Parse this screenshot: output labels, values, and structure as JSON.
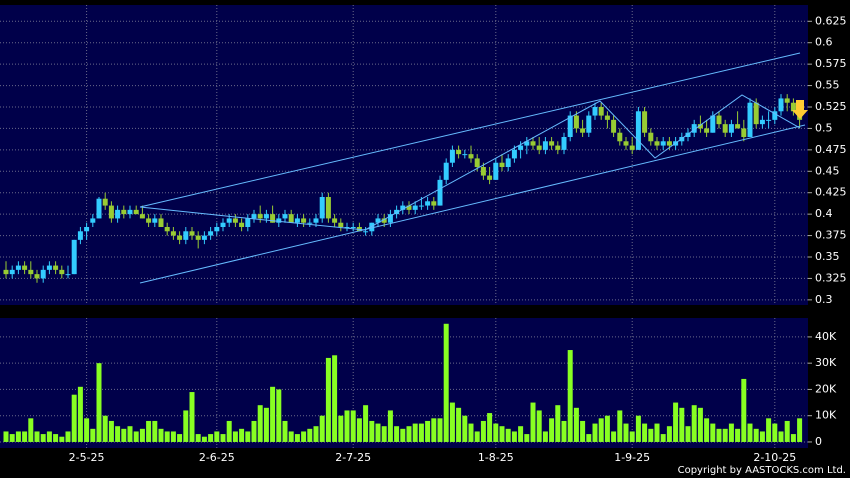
{
  "chart_data": [
    {
      "type": "candlestick",
      "open": [
        0.335,
        0.33,
        0.335,
        0.34,
        0.335,
        0.33,
        0.325,
        0.335,
        0.34,
        0.335,
        0.33,
        0.33,
        0.37,
        0.38,
        0.39,
        0.395,
        0.418,
        0.41,
        0.395,
        0.405,
        0.4,
        0.405,
        0.4,
        0.395,
        0.39,
        0.395,
        0.385,
        0.38,
        0.375,
        0.37,
        0.38,
        0.375,
        0.37,
        0.375,
        0.38,
        0.385,
        0.39,
        0.395,
        0.39,
        0.385,
        0.395,
        0.4,
        0.395,
        0.4,
        0.39,
        0.395,
        0.4,
        0.39,
        0.395,
        0.39,
        0.39,
        0.395,
        0.42,
        0.395,
        0.39,
        0.385,
        0.385,
        0.385,
        0.38,
        0.38,
        0.39,
        0.395,
        0.39,
        0.4,
        0.405,
        0.41,
        0.405,
        0.41,
        0.41,
        0.415,
        0.41,
        0.44,
        0.46,
        0.475,
        0.47,
        0.47,
        0.465,
        0.455,
        0.445,
        0.44,
        0.46,
        0.455,
        0.465,
        0.475,
        0.48,
        0.485,
        0.48,
        0.475,
        0.485,
        0.48,
        0.475,
        0.49,
        0.515,
        0.5,
        0.495,
        0.515,
        0.525,
        0.515,
        0.51,
        0.495,
        0.485,
        0.48,
        0.475,
        0.52,
        0.495,
        0.485,
        0.48,
        0.485,
        0.48,
        0.485,
        0.49,
        0.495,
        0.505,
        0.5,
        0.495,
        0.515,
        0.505,
        0.495,
        0.505,
        0.5,
        0.49,
        0.53,
        0.505,
        0.51,
        0.51,
        0.52,
        0.535,
        0.53,
        0.52
      ],
      "high": [
        0.345,
        0.34,
        0.345,
        0.345,
        0.345,
        0.335,
        0.34,
        0.345,
        0.345,
        0.34,
        0.34,
        0.37,
        0.385,
        0.39,
        0.4,
        0.42,
        0.425,
        0.415,
        0.41,
        0.41,
        0.41,
        0.41,
        0.41,
        0.4,
        0.4,
        0.4,
        0.39,
        0.385,
        0.38,
        0.385,
        0.385,
        0.38,
        0.38,
        0.385,
        0.39,
        0.395,
        0.4,
        0.4,
        0.395,
        0.4,
        0.405,
        0.41,
        0.405,
        0.41,
        0.4,
        0.405,
        0.405,
        0.4,
        0.4,
        0.395,
        0.4,
        0.425,
        0.425,
        0.4,
        0.395,
        0.39,
        0.39,
        0.39,
        0.385,
        0.39,
        0.4,
        0.4,
        0.405,
        0.41,
        0.415,
        0.415,
        0.415,
        0.42,
        0.42,
        0.42,
        0.445,
        0.465,
        0.48,
        0.48,
        0.475,
        0.48,
        0.47,
        0.46,
        0.455,
        0.465,
        0.47,
        0.47,
        0.48,
        0.485,
        0.49,
        0.49,
        0.49,
        0.49,
        0.49,
        0.485,
        0.495,
        0.52,
        0.52,
        0.51,
        0.52,
        0.53,
        0.53,
        0.52,
        0.515,
        0.5,
        0.49,
        0.49,
        0.525,
        0.525,
        0.5,
        0.49,
        0.49,
        0.49,
        0.49,
        0.495,
        0.5,
        0.51,
        0.515,
        0.51,
        0.52,
        0.52,
        0.51,
        0.51,
        0.52,
        0.51,
        0.535,
        0.535,
        0.515,
        0.52,
        0.525,
        0.54,
        0.54,
        0.535,
        0.525
      ],
      "low": [
        0.325,
        0.325,
        0.33,
        0.33,
        0.325,
        0.32,
        0.32,
        0.33,
        0.33,
        0.325,
        0.325,
        0.33,
        0.365,
        0.37,
        0.385,
        0.395,
        0.405,
        0.39,
        0.39,
        0.395,
        0.395,
        0.4,
        0.395,
        0.385,
        0.385,
        0.385,
        0.375,
        0.37,
        0.365,
        0.365,
        0.37,
        0.36,
        0.365,
        0.37,
        0.375,
        0.38,
        0.385,
        0.385,
        0.38,
        0.38,
        0.39,
        0.39,
        0.39,
        0.39,
        0.385,
        0.39,
        0.39,
        0.385,
        0.385,
        0.385,
        0.385,
        0.39,
        0.39,
        0.385,
        0.38,
        0.38,
        0.38,
        0.38,
        0.375,
        0.375,
        0.385,
        0.385,
        0.385,
        0.395,
        0.4,
        0.4,
        0.4,
        0.405,
        0.405,
        0.405,
        0.41,
        0.435,
        0.455,
        0.465,
        0.465,
        0.46,
        0.45,
        0.44,
        0.435,
        0.44,
        0.45,
        0.45,
        0.46,
        0.465,
        0.47,
        0.475,
        0.47,
        0.47,
        0.475,
        0.47,
        0.47,
        0.485,
        0.495,
        0.49,
        0.49,
        0.51,
        0.51,
        0.5,
        0.49,
        0.48,
        0.475,
        0.47,
        0.475,
        0.49,
        0.48,
        0.475,
        0.475,
        0.475,
        0.475,
        0.48,
        0.485,
        0.49,
        0.495,
        0.49,
        0.495,
        0.5,
        0.49,
        0.49,
        0.5,
        0.485,
        0.49,
        0.5,
        0.5,
        0.5,
        0.505,
        0.515,
        0.52,
        0.515,
        0.5
      ],
      "close": [
        0.33,
        0.335,
        0.34,
        0.335,
        0.33,
        0.325,
        0.335,
        0.34,
        0.335,
        0.33,
        0.33,
        0.37,
        0.38,
        0.385,
        0.395,
        0.418,
        0.41,
        0.395,
        0.405,
        0.4,
        0.405,
        0.4,
        0.395,
        0.39,
        0.395,
        0.385,
        0.38,
        0.375,
        0.37,
        0.38,
        0.375,
        0.37,
        0.375,
        0.38,
        0.385,
        0.39,
        0.395,
        0.39,
        0.385,
        0.395,
        0.4,
        0.395,
        0.4,
        0.39,
        0.395,
        0.4,
        0.39,
        0.395,
        0.39,
        0.39,
        0.395,
        0.42,
        0.395,
        0.39,
        0.385,
        0.385,
        0.385,
        0.38,
        0.38,
        0.39,
        0.395,
        0.39,
        0.4,
        0.405,
        0.41,
        0.405,
        0.41,
        0.41,
        0.415,
        0.41,
        0.44,
        0.46,
        0.475,
        0.47,
        0.47,
        0.465,
        0.455,
        0.445,
        0.44,
        0.46,
        0.455,
        0.465,
        0.475,
        0.48,
        0.485,
        0.48,
        0.475,
        0.485,
        0.48,
        0.475,
        0.49,
        0.515,
        0.5,
        0.495,
        0.515,
        0.525,
        0.515,
        0.51,
        0.495,
        0.485,
        0.48,
        0.475,
        0.52,
        0.495,
        0.485,
        0.48,
        0.485,
        0.48,
        0.485,
        0.49,
        0.495,
        0.505,
        0.5,
        0.495,
        0.515,
        0.505,
        0.495,
        0.505,
        0.5,
        0.49,
        0.53,
        0.505,
        0.51,
        0.51,
        0.52,
        0.535,
        0.53,
        0.52,
        0.51
      ],
      "up_color": "#33ccff",
      "down_color": "#99cc33",
      "ylim": [
        0.294,
        0.644
      ],
      "yticks": [
        0.3,
        0.325,
        0.35,
        0.375,
        0.4,
        0.425,
        0.45,
        0.475,
        0.5,
        0.525,
        0.55,
        0.575,
        0.6,
        0.625
      ],
      "grid": true
    },
    {
      "type": "bar",
      "categories": [
        null,
        null,
        null,
        null,
        null,
        null,
        null,
        null,
        null,
        null,
        null,
        null,
        null,
        "2-5-25",
        null,
        null,
        null,
        null,
        null,
        null,
        null,
        null,
        null,
        null,
        null,
        null,
        null,
        null,
        null,
        null,
        null,
        null,
        null,
        null,
        "2-6-25",
        null,
        null,
        null,
        null,
        null,
        null,
        null,
        null,
        null,
        null,
        null,
        null,
        null,
        null,
        null,
        null,
        null,
        null,
        null,
        null,
        null,
        "2-7-25",
        null,
        null,
        null,
        null,
        null,
        null,
        null,
        null,
        null,
        null,
        null,
        null,
        null,
        null,
        null,
        null,
        null,
        null,
        null,
        null,
        null,
        null,
        "1-8-25",
        null,
        null,
        null,
        null,
        null,
        null,
        null,
        null,
        null,
        null,
        null,
        null,
        null,
        null,
        null,
        null,
        null,
        null,
        null,
        null,
        null,
        "1-9-25",
        null,
        null,
        null,
        null,
        null,
        null,
        null,
        null,
        null,
        null,
        null,
        null,
        null,
        null,
        null,
        null,
        null,
        null,
        null,
        null,
        null,
        null,
        "2-10-25",
        null,
        null,
        null,
        null
      ],
      "values": [
        4000,
        3000,
        4000,
        4000,
        9000,
        4000,
        3000,
        4000,
        3000,
        2000,
        4000,
        18000,
        21000,
        9000,
        5000,
        30000,
        10000,
        8000,
        6000,
        5000,
        6000,
        4000,
        5000,
        8000,
        8000,
        5000,
        4000,
        4000,
        3000,
        12000,
        19000,
        3000,
        2000,
        3000,
        4000,
        3000,
        8000,
        4000,
        5000,
        4000,
        8000,
        14000,
        13000,
        21000,
        20000,
        8000,
        4000,
        3000,
        4000,
        5000,
        6000,
        10000,
        32000,
        33000,
        10000,
        12000,
        12000,
        9000,
        14000,
        8000,
        7000,
        6000,
        12000,
        6000,
        5000,
        6000,
        7000,
        7000,
        8000,
        9000,
        9000,
        45000,
        15000,
        13000,
        10000,
        7000,
        4000,
        8000,
        11000,
        7000,
        6000,
        5000,
        4000,
        6000,
        3000,
        15000,
        12000,
        4000,
        9000,
        14000,
        8000,
        35000,
        13000,
        8000,
        3000,
        7000,
        9000,
        10000,
        4000,
        12000,
        7000,
        4000,
        10000,
        7000,
        5000,
        7000,
        3000,
        6000,
        15000,
        13000,
        6000,
        14000,
        13000,
        9000,
        7000,
        5000,
        5000,
        7000,
        5000,
        24000,
        7000,
        5000,
        4000,
        9000,
        7000,
        4000,
        8000,
        3000,
        9000
      ],
      "color": "#88ff22",
      "ylim": [
        -2300,
        47200
      ],
      "yticks": [
        0,
        {
          "value": 10000,
          "label": "10K"
        },
        {
          "value": 20000,
          "label": "20K"
        },
        {
          "value": 30000,
          "label": "30K"
        },
        {
          "value": 40000,
          "label": "40K"
        }
      ],
      "grid": true
    }
  ],
  "copyright": "Copyright by AASTOCKS.com Ltd."
}
